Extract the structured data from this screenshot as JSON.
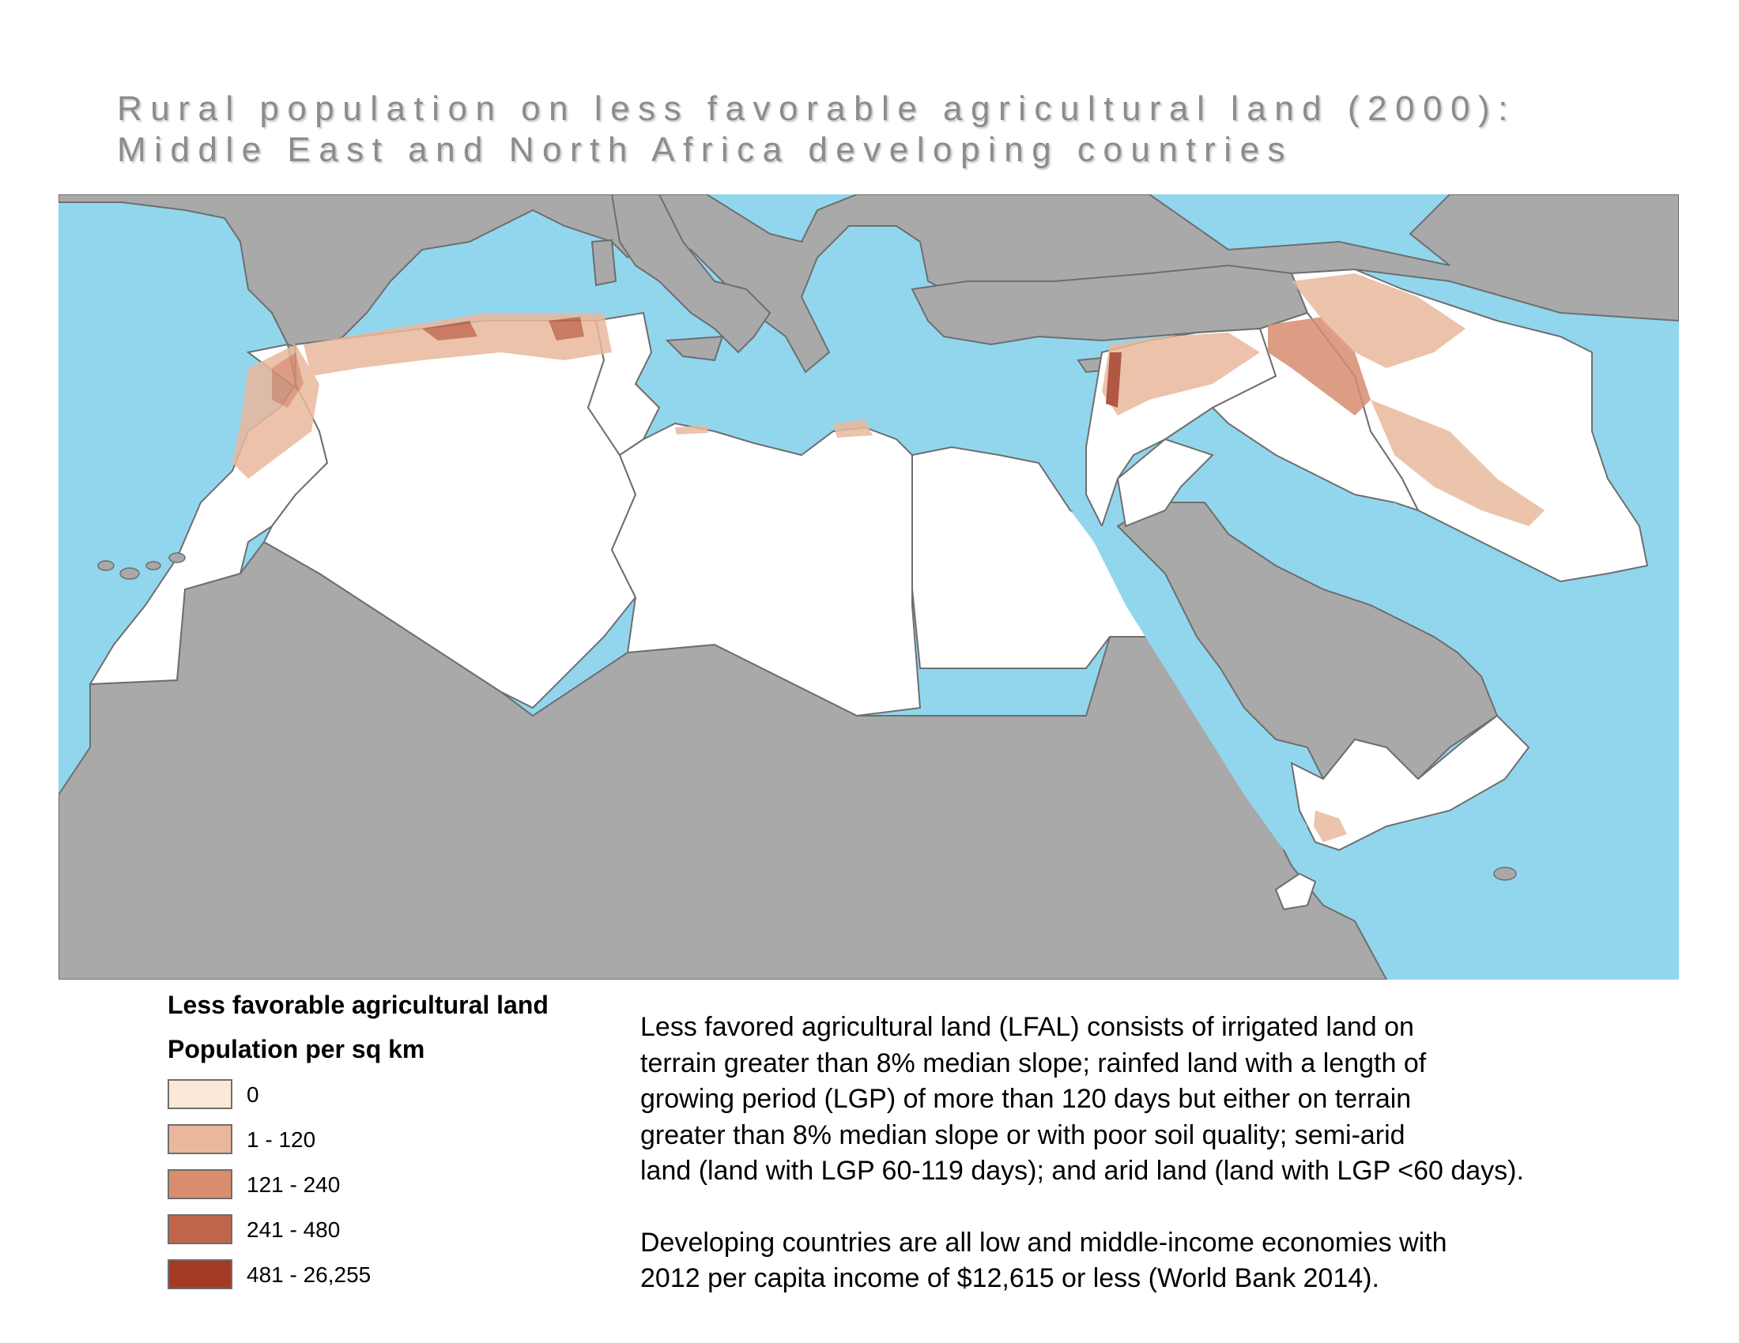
{
  "title": {
    "line1": "Rural population on less favorable agricultural land (2000):",
    "line2": "Middle East and North Africa developing countries"
  },
  "legend": {
    "title": "Less favorable agricultural land",
    "subtitle": "Population per sq km",
    "items": [
      {
        "label": "0",
        "color": "#fbe8d6"
      },
      {
        "label": "1 - 120",
        "color": "#e9b89c"
      },
      {
        "label": "121 - 240",
        "color": "#d88d6f"
      },
      {
        "label": "241 - 480",
        "color": "#c0654a"
      },
      {
        "label": "481 - 26,255",
        "color": "#a53a24"
      }
    ]
  },
  "notes": {
    "paragraph1": [
      "Less favored agricultural land (LFAL) consists of irrigated land on",
      "terrain greater than 8% median slope; rainfed land with a length of",
      "growing period (LGP) of more than 120 days but either on terrain",
      "greater than 8% median slope or with poor soil quality; semi-arid",
      "land (land with LGP 60-119 days); and arid land (land with LGP <60 days)."
    ],
    "paragraph2": [
      "Developing countries are all low and middle-income economies with",
      "2012 per capita income of $12,615 or less (World Bank 2014)."
    ]
  },
  "map_colors": {
    "water": "#92d6ee",
    "other_land": "#a9a9a9",
    "study_countries": "#ffffff",
    "borders": "#6e6e6e"
  }
}
